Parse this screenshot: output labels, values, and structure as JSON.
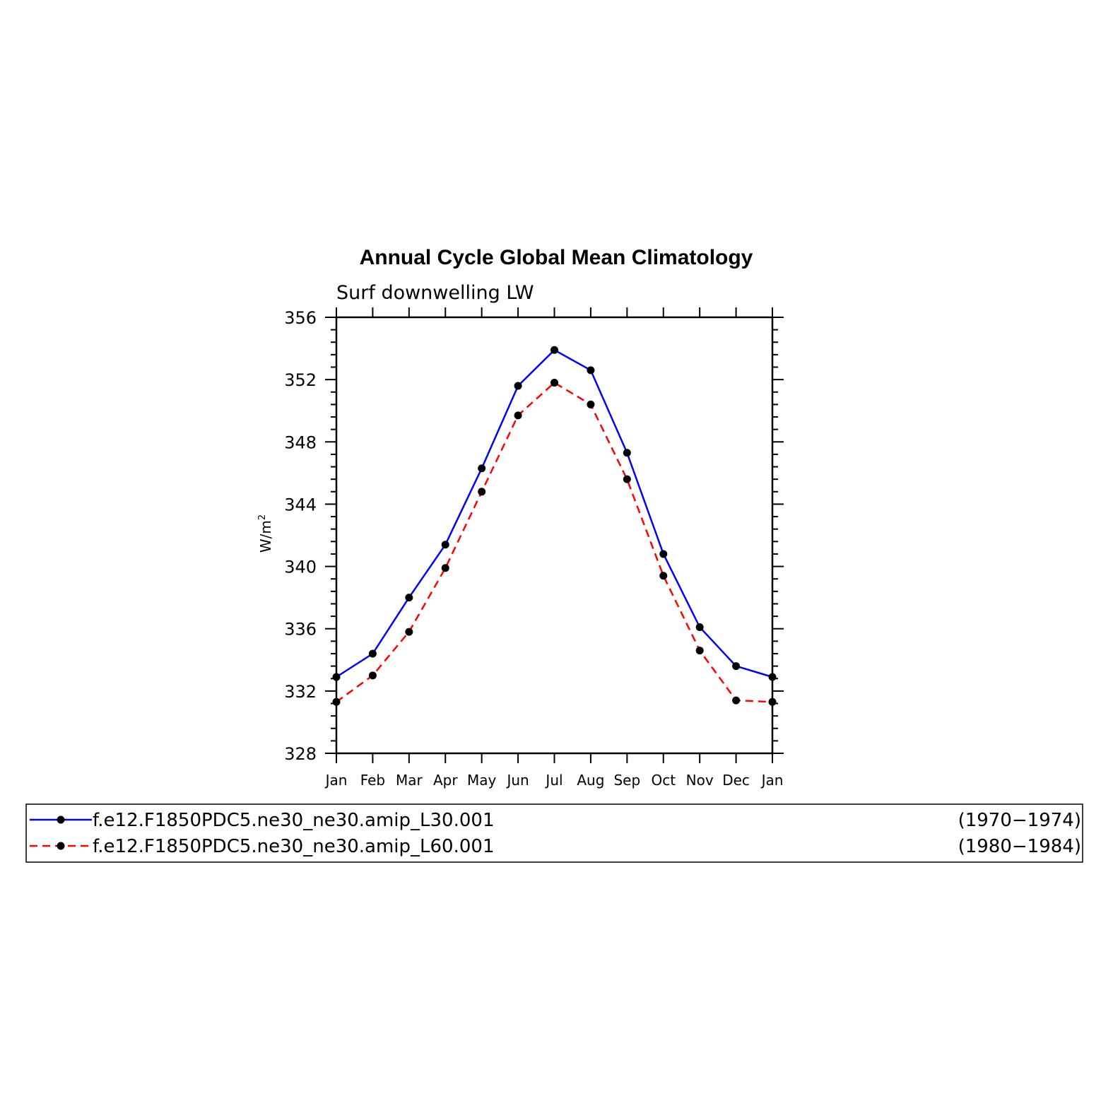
{
  "chart_data": {
    "type": "line",
    "title": "Annual Cycle Global Mean Climatology",
    "subtitle": "Surf downwelling LW",
    "ylabel": "W/m",
    "ylabel_sup": "2",
    "xlabel": "",
    "categories": [
      "Jan",
      "Feb",
      "Mar",
      "Apr",
      "May",
      "Jun",
      "Jul",
      "Aug",
      "Sep",
      "Oct",
      "Nov",
      "Dec",
      "Jan"
    ],
    "ylim": [
      328,
      356
    ],
    "yticks": [
      328,
      332,
      336,
      340,
      344,
      348,
      352,
      356
    ],
    "grid": false,
    "legend_position": "bottom",
    "series": [
      {
        "name": "f.e12.F1850PDC5.ne30_ne30.amip_L30.001",
        "period": "(1970−1974)",
        "color": "#0000ff",
        "dash": "solid",
        "values": [
          332.9,
          334.4,
          338.0,
          341.4,
          346.3,
          351.6,
          353.9,
          352.6,
          347.3,
          340.8,
          336.1,
          333.6,
          332.9
        ]
      },
      {
        "name": "f.e12.F1850PDC5.ne30_ne30.amip_L60.001",
        "period": "(1980−1984)",
        "color": "#ff0000",
        "dash": "dashed",
        "values": [
          331.3,
          333.0,
          335.8,
          339.9,
          344.8,
          349.7,
          351.8,
          350.4,
          345.6,
          339.4,
          334.6,
          331.4,
          331.3
        ]
      }
    ],
    "marker_color": "#000000"
  }
}
